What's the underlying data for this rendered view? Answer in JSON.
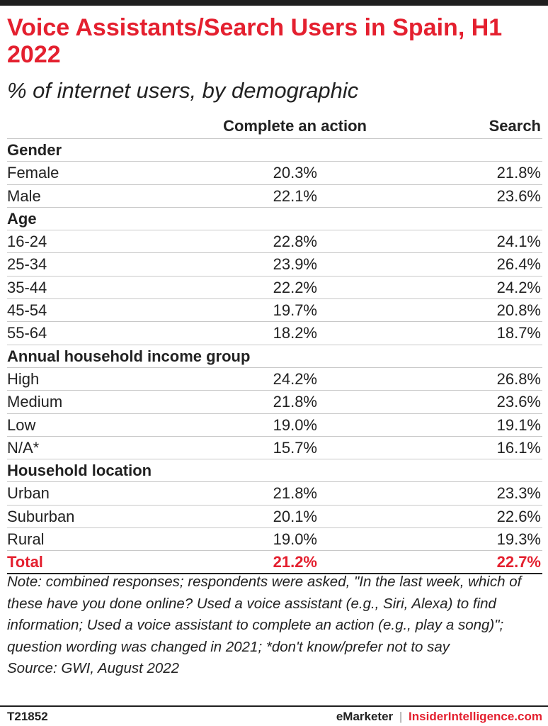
{
  "title": "Voice Assistants/Search Users in Spain, H1 2022",
  "subtitle": "% of internet users, by demographic",
  "chart_data": {
    "type": "table",
    "columns": [
      "",
      "Complete an action",
      "Search"
    ],
    "rows": [
      {
        "kind": "group",
        "label": "Gender"
      },
      {
        "kind": "data",
        "label": "Female",
        "action": "20.3%",
        "search": "21.8%"
      },
      {
        "kind": "data",
        "label": "Male",
        "action": "22.1%",
        "search": "23.6%"
      },
      {
        "kind": "group",
        "label": "Age"
      },
      {
        "kind": "data",
        "label": "16-24",
        "action": "22.8%",
        "search": "24.1%"
      },
      {
        "kind": "data",
        "label": "25-34",
        "action": "23.9%",
        "search": "26.4%"
      },
      {
        "kind": "data",
        "label": "35-44",
        "action": "22.2%",
        "search": "24.2%"
      },
      {
        "kind": "data",
        "label": "45-54",
        "action": "19.7%",
        "search": "20.8%"
      },
      {
        "kind": "data",
        "label": "55-64",
        "action": "18.2%",
        "search": "18.7%"
      },
      {
        "kind": "group",
        "label": "Annual household income group"
      },
      {
        "kind": "data",
        "label": "High",
        "action": "24.2%",
        "search": "26.8%"
      },
      {
        "kind": "data",
        "label": "Medium",
        "action": "21.8%",
        "search": "23.6%"
      },
      {
        "kind": "data",
        "label": "Low",
        "action": "19.0%",
        "search": "19.1%"
      },
      {
        "kind": "data",
        "label": "N/A*",
        "action": "15.7%",
        "search": "16.1%"
      },
      {
        "kind": "group",
        "label": "Household location"
      },
      {
        "kind": "data",
        "label": "Urban",
        "action": "21.8%",
        "search": "23.3%"
      },
      {
        "kind": "data",
        "label": "Suburban",
        "action": "20.1%",
        "search": "22.6%"
      },
      {
        "kind": "data",
        "label": "Rural",
        "action": "19.0%",
        "search": "19.3%"
      },
      {
        "kind": "total",
        "label": "Total",
        "action": "21.2%",
        "search": "22.7%"
      }
    ]
  },
  "note": "Note: combined responses; respondents were asked, \"In the last week, which of these have you done online? Used a voice assistant (e.g., Siri, Alexa) to find information; Used a voice assistant to complete an action (e.g., play a song)\"; question wording was changed in 2021; *don't know/prefer not to say",
  "source": "Source: GWI, August 2022",
  "footer": {
    "id": "T21852",
    "brand_a": "eMarketer",
    "separator": "|",
    "brand_b": "InsiderIntelligence.com"
  },
  "colors": {
    "accent": "#e4202f",
    "text": "#222222",
    "rule": "#1f1f1f"
  }
}
